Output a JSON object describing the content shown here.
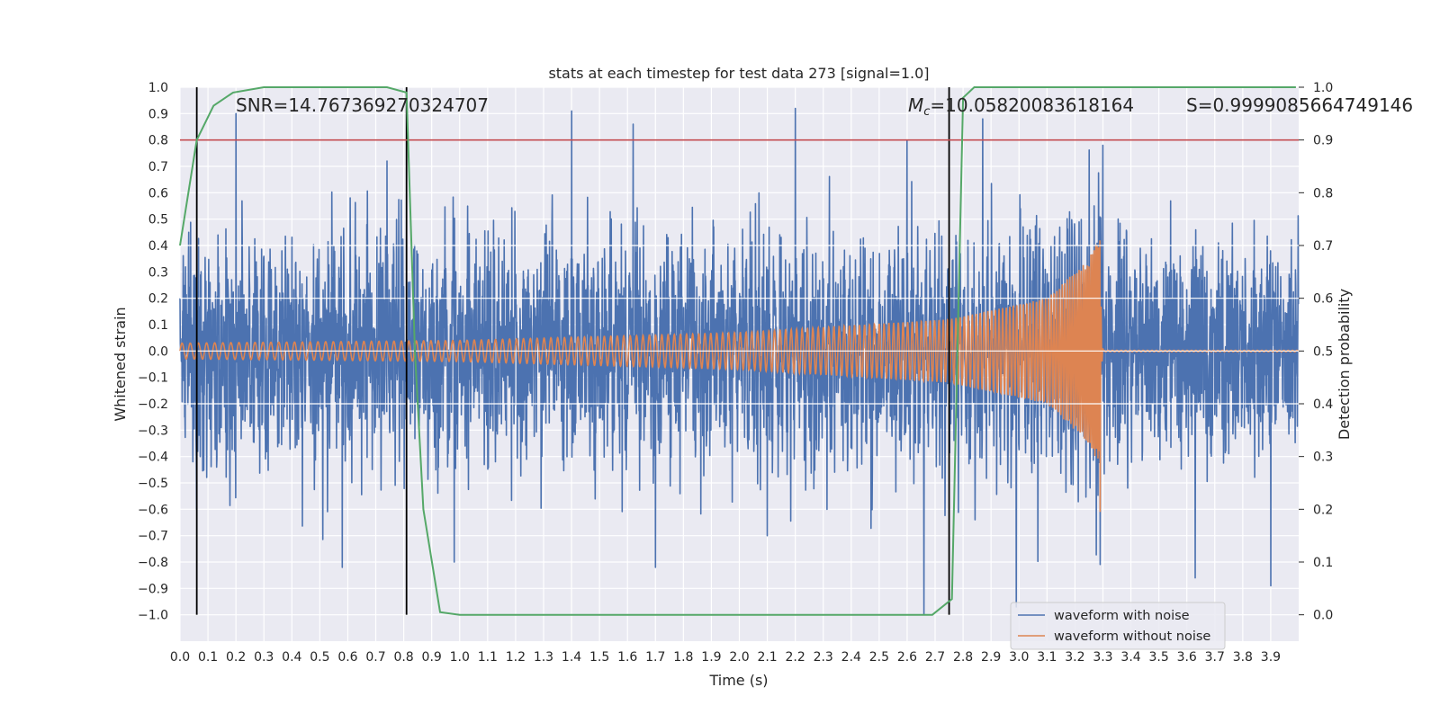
{
  "chart_data": {
    "type": "line",
    "title": "stats at each timestep for test data 273 [signal=1.0]",
    "xlabel": "Time (s)",
    "ylabel": "Whitened strain",
    "y2label": "Detection probability",
    "xlim": [
      0.0,
      4.0
    ],
    "ylim": [
      -1.1,
      1.0
    ],
    "y2lim": [
      -0.05,
      1.0
    ],
    "xticks": [
      "0.0",
      "0.1",
      "0.2",
      "0.3",
      "0.4",
      "0.5",
      "0.6",
      "0.7",
      "0.8",
      "0.9",
      "1.0",
      "1.1",
      "1.2",
      "1.3",
      "1.4",
      "1.5",
      "1.6",
      "1.7",
      "1.8",
      "1.9",
      "2.0",
      "2.1",
      "2.2",
      "2.3",
      "2.4",
      "2.5",
      "2.6",
      "2.7",
      "2.8",
      "2.9",
      "3.0",
      "3.1",
      "3.2",
      "3.3",
      "3.4",
      "3.5",
      "3.6",
      "3.7",
      "3.8",
      "3.9"
    ],
    "yticks": [
      "1.0",
      "0.9",
      "0.8",
      "0.7",
      "0.6",
      "0.5",
      "0.4",
      "0.3",
      "0.2",
      "0.1",
      "0.0",
      "−0.1",
      "−0.2",
      "−0.3",
      "−0.4",
      "−0.5",
      "−0.6",
      "−0.7",
      "−0.8",
      "−0.9",
      "−1.0"
    ],
    "y2ticks": [
      "1.0",
      "0.9",
      "0.8",
      "0.7",
      "0.6",
      "0.5",
      "0.4",
      "0.3",
      "0.2",
      "0.1",
      "0.0"
    ],
    "grid": true,
    "legend_position": "lower-right",
    "series": [
      {
        "name": "waveform with noise",
        "color": "#4c72b0",
        "axis": "left",
        "description_points": [
          [
            0.0,
            0.2
          ],
          [
            0.06,
            -0.6
          ],
          [
            0.2,
            0.9
          ],
          [
            0.58,
            -0.82
          ],
          [
            0.74,
            0.72
          ],
          [
            0.98,
            -0.8
          ],
          [
            1.4,
            0.91
          ],
          [
            1.62,
            0.86
          ],
          [
            1.7,
            -0.82
          ],
          [
            2.1,
            -0.7
          ],
          [
            2.2,
            0.92
          ],
          [
            2.6,
            0.8
          ],
          [
            2.66,
            -1.0
          ],
          [
            2.87,
            0.88
          ],
          [
            2.99,
            -0.97
          ],
          [
            3.3,
            0.78
          ],
          [
            3.63,
            -0.86
          ],
          [
            3.9,
            -0.89
          ]
        ]
      },
      {
        "name": "waveform without noise",
        "color": "#dd8452",
        "axis": "left",
        "envelope": [
          [
            0.0,
            0.03
          ],
          [
            1.0,
            0.04
          ],
          [
            2.0,
            0.07
          ],
          [
            2.75,
            0.12
          ],
          [
            3.1,
            0.2
          ],
          [
            3.25,
            0.35
          ],
          [
            3.28,
            0.42
          ]
        ],
        "merger_time": 3.29,
        "ringdown_min": -0.62
      },
      {
        "name": "",
        "color": "#55a868",
        "axis": "right",
        "points": [
          [
            0.0,
            0.7
          ],
          [
            0.06,
            0.9
          ],
          [
            0.12,
            0.965
          ],
          [
            0.19,
            0.99
          ],
          [
            0.3,
            1.0
          ],
          [
            0.5,
            1.0
          ],
          [
            0.74,
            1.0
          ],
          [
            0.81,
            0.99
          ],
          [
            0.84,
            0.5
          ],
          [
            0.87,
            0.2
          ],
          [
            0.93,
            0.005
          ],
          [
            1.0,
            0.0
          ],
          [
            2.69,
            0.0
          ],
          [
            2.76,
            0.03
          ],
          [
            2.8,
            0.98
          ],
          [
            2.84,
            1.0
          ],
          [
            3.99,
            1.0
          ]
        ]
      }
    ],
    "threshold": {
      "value": 0.9,
      "axis": "right",
      "color": "#c44e52"
    },
    "vertical_markers": [
      0.06,
      0.81,
      2.75
    ],
    "annotations": {
      "snr": "SNR=14.767369270324707",
      "mc": "=10.05820083618164",
      "mc_symbol": "M",
      "mc_sub": "c",
      "s": "S=0.9999085664749146"
    }
  }
}
